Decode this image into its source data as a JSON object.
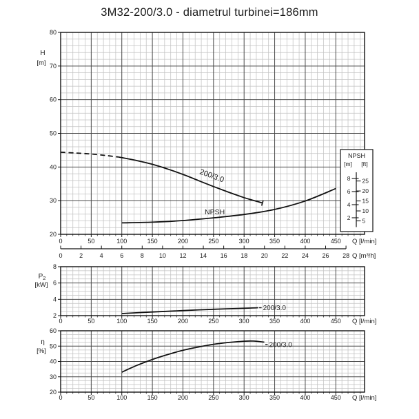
{
  "page_title": "3M32-200/3.0 - diametrul turbinei=186mm",
  "colors": {
    "ink": "#111111",
    "grid_major": "#474747",
    "grid_minor": "#c2c2c2",
    "background": "#ffffff"
  },
  "chart_data": [
    {
      "type": "line",
      "name": "head-npsh-chart",
      "xlabel": "Q [l/min]",
      "x2label": "Q [m³/h]",
      "x2_factor": 16.6667,
      "ylabel": "H",
      "ylabel_sub": "",
      "ylabel_unit": "[m]",
      "xlim": [
        0,
        497
      ],
      "ylim": [
        20,
        80
      ],
      "xticks": [
        0,
        50,
        100,
        150,
        200,
        250,
        300,
        350,
        400,
        450
      ],
      "x2ticks": [
        0,
        2,
        4,
        6,
        8,
        10,
        12,
        14,
        16,
        18,
        20,
        22,
        24,
        26,
        28
      ],
      "yticks": [
        20,
        30,
        40,
        50,
        60,
        70,
        80
      ],
      "x_minor": 10,
      "y_minor": 2,
      "series": [
        {
          "name": "head-curve",
          "label": "200/3.0",
          "dashed_until": 95,
          "end_tick": true,
          "points": [
            [
              0,
              44.4
            ],
            [
              25,
              44.15
            ],
            [
              50,
              43.85
            ],
            [
              75,
              43.4
            ],
            [
              95,
              42.95
            ],
            [
              125,
              41.9
            ],
            [
              150,
              40.8
            ],
            [
              175,
              39.4
            ],
            [
              200,
              37.8
            ],
            [
              225,
              36.0
            ],
            [
              250,
              34.2
            ],
            [
              275,
              32.5
            ],
            [
              300,
              30.9
            ],
            [
              315,
              30.1
            ],
            [
              330,
              29.3
            ]
          ]
        },
        {
          "name": "npsh-curve",
          "label": "NPSH",
          "points": [
            [
              100,
              23.4
            ],
            [
              150,
              23.6
            ],
            [
              200,
              24.1
            ],
            [
              250,
              24.9
            ],
            [
              300,
              25.9
            ],
            [
              350,
              27.4
            ],
            [
              400,
              29.9
            ],
            [
              450,
              33.6
            ]
          ]
        }
      ],
      "npsh_scale": {
        "title": "NPSH",
        "unit_m": "[m]",
        "unit_ft": "[ft]",
        "m_ticks": [
          8,
          6,
          4,
          2
        ],
        "ft_ticks": [
          25,
          20,
          15,
          10,
          5
        ]
      }
    },
    {
      "type": "line",
      "name": "power-chart",
      "xlabel": "Q [l/min]",
      "ylabel": "P",
      "ylabel_sub": "2",
      "ylabel_unit": "[kW]",
      "xlim": [
        0,
        497
      ],
      "ylim": [
        2,
        8
      ],
      "xticks": [
        0,
        50,
        100,
        150,
        200,
        250,
        300,
        350,
        400,
        450
      ],
      "yticks": [
        2,
        4,
        6,
        8
      ],
      "x_minor": 10,
      "y_minor": 0.5,
      "series": [
        {
          "name": "p2-curve",
          "label": "200/3.0",
          "leader": true,
          "points": [
            [
              100,
              2.25
            ],
            [
              150,
              2.45
            ],
            [
              200,
              2.62
            ],
            [
              250,
              2.78
            ],
            [
              300,
              2.9
            ],
            [
              323,
              2.97
            ]
          ]
        }
      ]
    },
    {
      "type": "line",
      "name": "efficiency-chart",
      "xlabel": "Q [l/min]",
      "ylabel": "η",
      "ylabel_sub": "",
      "ylabel_unit": "[%]",
      "xlim": [
        0,
        497
      ],
      "ylim": [
        20,
        60
      ],
      "xticks": [
        0,
        50,
        100,
        150,
        200,
        250,
        300,
        350,
        400,
        450
      ],
      "yticks": [
        20,
        30,
        40,
        50,
        60
      ],
      "x_minor": 10,
      "y_minor": 2.5,
      "series": [
        {
          "name": "eta-curve",
          "label": "200/3.0",
          "leader": true,
          "points": [
            [
              100,
              33
            ],
            [
              125,
              37.5
            ],
            [
              150,
              41.3
            ],
            [
              175,
              44.5
            ],
            [
              200,
              47.3
            ],
            [
              225,
              49.4
            ],
            [
              250,
              51.2
            ],
            [
              275,
              52.4
            ],
            [
              300,
              53.2
            ],
            [
              315,
              53.3
            ],
            [
              333,
              52.6
            ]
          ]
        }
      ]
    }
  ]
}
